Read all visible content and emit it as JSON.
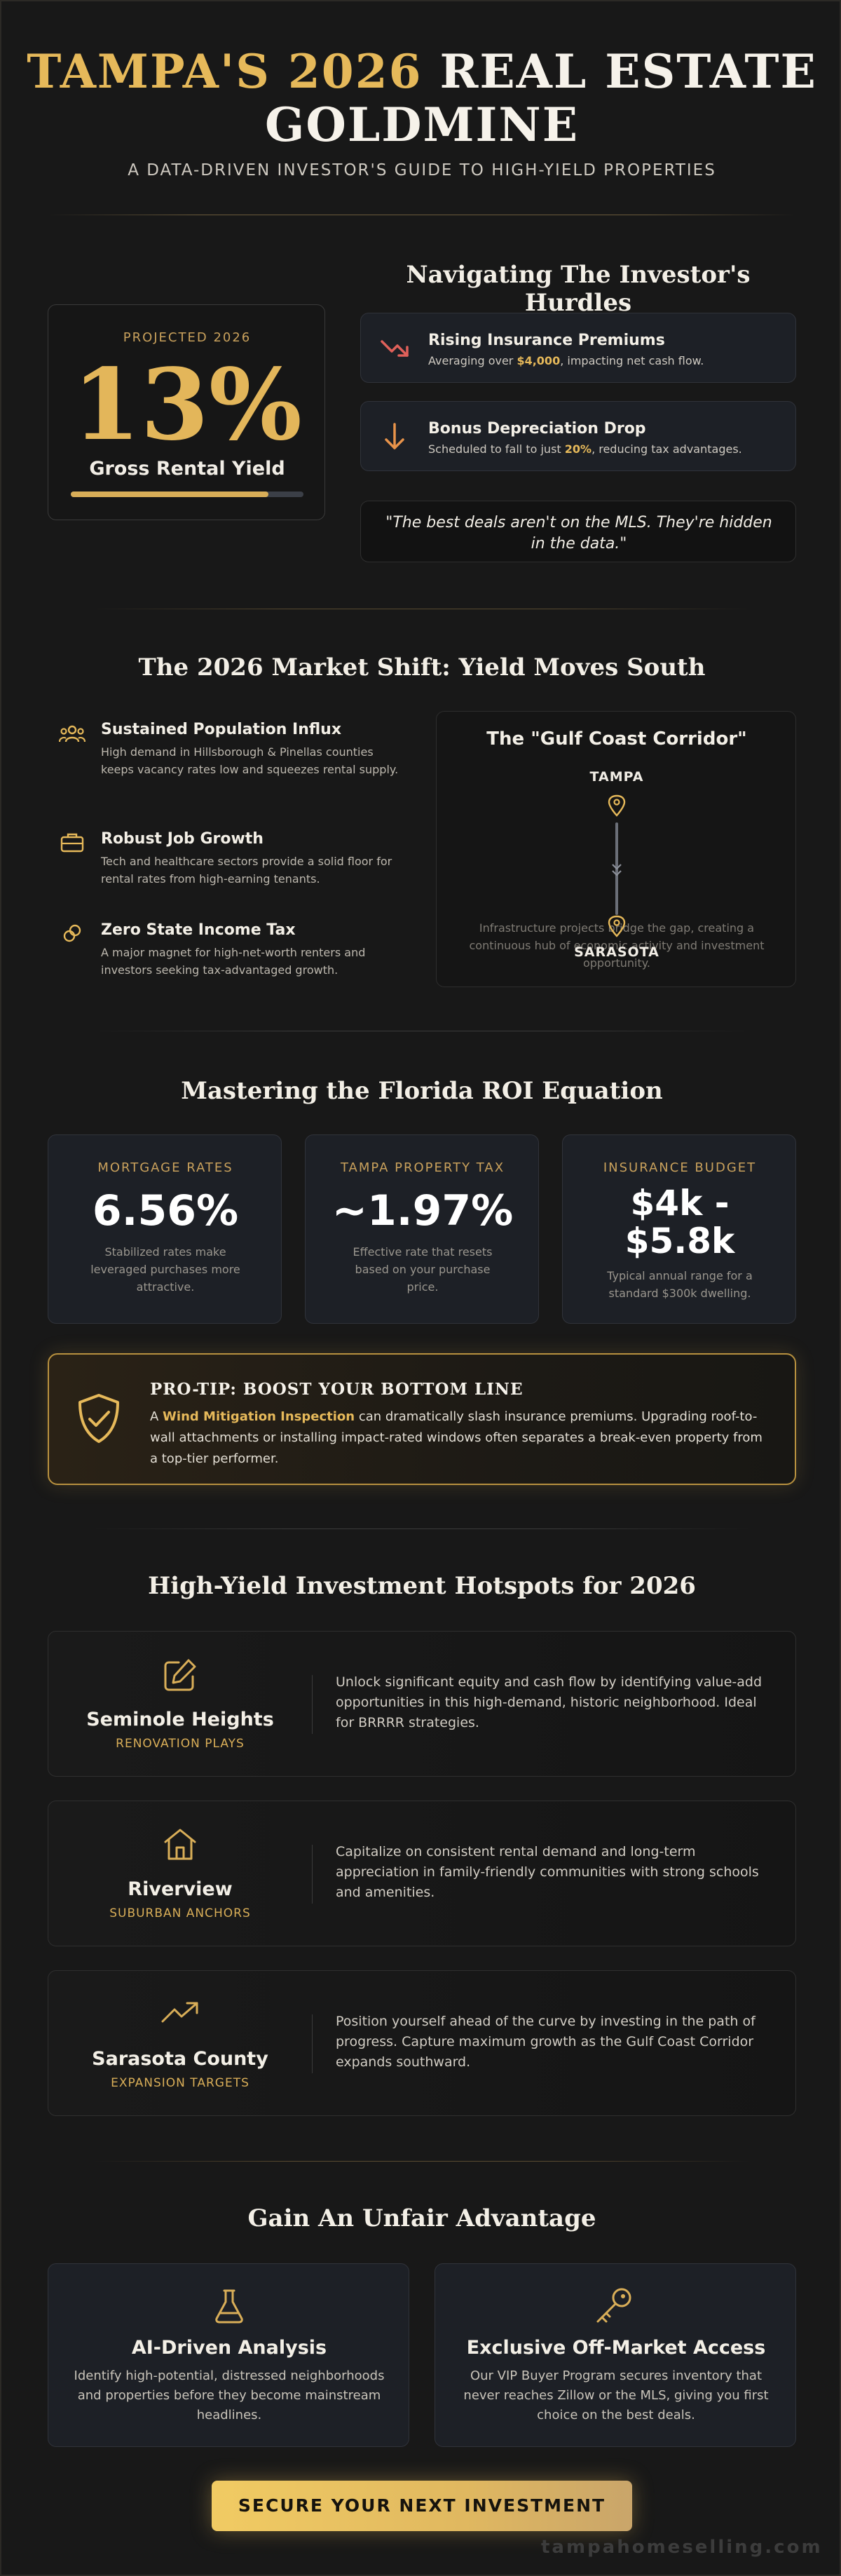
{
  "header": {
    "title_gold": "TAMPA'S 2026",
    "title_white_line1": "REAL ESTATE",
    "title_white_line2": "GOLDMINE",
    "subtitle": "A DATA-DRIVEN INVESTOR'S GUIDE TO HIGH-YIELD PROPERTIES"
  },
  "hurdles": {
    "heading": "Navigating The Investor's Hurdles",
    "yield_card": {
      "eyebrow": "PROJECTED 2026",
      "value": "13%",
      "label": "Gross Rental Yield",
      "progress": 0.85
    },
    "items": [
      {
        "icon": "trend-down-icon",
        "title": "Rising Insurance Premiums",
        "text_before": "Averaging over ",
        "highlight": "$4,000",
        "text_after": ", impacting net cash flow."
      },
      {
        "icon": "arrow-down-icon",
        "title": "Bonus Depreciation Drop",
        "text_before": "Scheduled to fall to just ",
        "highlight": "20%",
        "text_after": ", reducing tax advantages."
      }
    ],
    "quote": "\"The best deals aren't on the MLS. They're hidden in the data.\""
  },
  "market_shift": {
    "heading": "The 2026 Market Shift: Yield Moves South",
    "items": [
      {
        "icon": "users-icon",
        "title": "Sustained Population Influx",
        "text": "High demand in Hillsborough & Pinellas counties keeps vacancy rates low and squeezes rental supply."
      },
      {
        "icon": "briefcase-icon",
        "title": "Robust Job Growth",
        "text": "Tech and healthcare sectors provide a solid floor for rental rates from high-earning tenants."
      },
      {
        "icon": "coins-icon",
        "title": "Zero State Income Tax",
        "text": "A major magnet for high-net-worth renters and investors seeking tax-advantaged growth."
      }
    ],
    "corridor": {
      "title": "The \"Gulf Coast Corridor\"",
      "top_city": "TAMPA",
      "bottom_city": "SARASOTA",
      "description": "Infrastructure projects bridge the gap, creating a continuous hub of economic activity and investment opportunity."
    }
  },
  "roi": {
    "heading": "Mastering the Florida ROI Equation",
    "stats": [
      {
        "label": "MORTGAGE RATES",
        "value": "6.56%",
        "note": "Stabilized rates make leveraged purchases more attractive."
      },
      {
        "label": "TAMPA PROPERTY TAX",
        "value": "~1.97%",
        "note": "Effective rate that resets based on your purchase price."
      },
      {
        "label": "INSURANCE BUDGET",
        "value_line1": "$4k -",
        "value_line2": "$5.8k",
        "note": "Typical annual range for a standard $300k dwelling."
      }
    ],
    "tip": {
      "title": "PRO-TIP: BOOST YOUR BOTTOM LINE",
      "text_before": "A ",
      "highlight": "Wind Mitigation Inspection",
      "text_after": " can dramatically slash insurance premiums. Upgrading roof-to-wall attachments or installing impact-rated windows often separates a break-even property from a top-tier performer."
    }
  },
  "hotspots": {
    "heading": "High-Yield Investment Hotspots for 2026",
    "items": [
      {
        "icon": "edit-icon",
        "name": "Seminole Heights",
        "tag": "RENOVATION PLAYS",
        "text": "Unlock significant equity and cash flow by identifying value-add opportunities in this high-demand, historic neighborhood. Ideal for BRRRR strategies."
      },
      {
        "icon": "home-icon",
        "name": "Riverview",
        "tag": "SUBURBAN ANCHORS",
        "text": "Capitalize on consistent rental demand and long-term appreciation in family-friendly communities with strong schools and amenities."
      },
      {
        "icon": "trend-up-icon",
        "name": "Sarasota County",
        "tag": "EXPANSION TARGETS",
        "text": "Position yourself ahead of the curve by investing in the path of progress. Capture maximum growth as the Gulf Coast Corridor expands southward."
      }
    ]
  },
  "advantage": {
    "heading": "Gain An Unfair Advantage",
    "cards": [
      {
        "icon": "flask-icon",
        "title": "AI-Driven Analysis",
        "text": "Identify high-potential, distressed neighborhoods and properties before they become mainstream headlines."
      },
      {
        "icon": "key-icon",
        "title": "Exclusive Off-Market Access",
        "text": "Our VIP Buyer Program secures inventory that never reaches Zillow or the MLS, giving you first choice on the best deals."
      }
    ],
    "cta": "SECURE YOUR NEXT INVESTMENT",
    "watermark": "tampahomeselling.com"
  },
  "colors": {
    "accent": "#e6b95a",
    "background": "#181818",
    "card": "#1d2026",
    "danger": "#e0605a"
  }
}
